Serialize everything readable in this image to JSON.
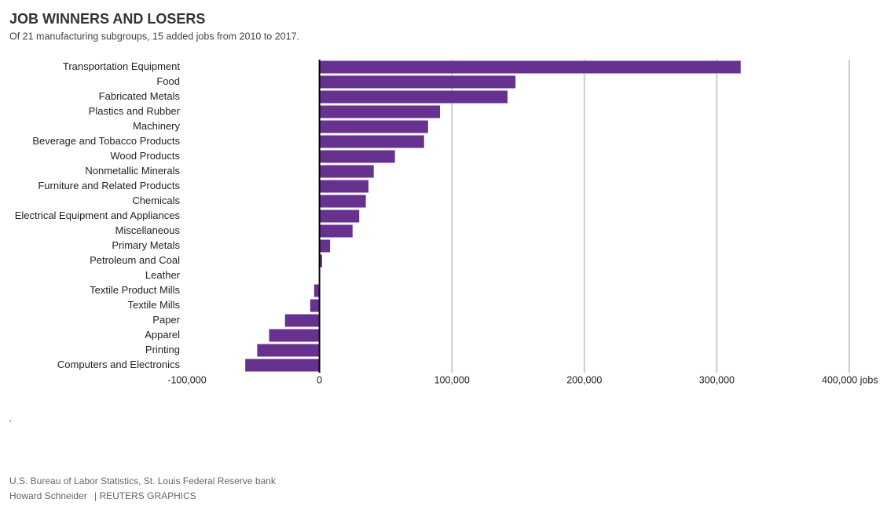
{
  "chart_data": {
    "type": "bar",
    "orientation": "horizontal",
    "title": "JOB WINNERS AND LOSERS",
    "subtitle": "Of 21 manufacturing subgroups, 15 added jobs from 2010 to 2017.",
    "categories": [
      "Transportation Equipment",
      "Food",
      "Fabricated Metals",
      "Plastics and Rubber",
      "Machinery",
      "Beverage and Tobacco Products",
      "Wood Products",
      "Nonmetallic Minerals",
      "Furniture and Related Products",
      "Chemicals",
      "Electrical Equipment and Appliances",
      "Miscellaneous",
      "Primary Metals",
      "Petroleum and Coal",
      "Leather",
      "Textile Product Mills",
      "Textile Mills",
      "Paper",
      "Apparel",
      "Printing",
      "Computers and Electronics"
    ],
    "values": [
      318000,
      148000,
      142000,
      91000,
      82000,
      79000,
      57000,
      41000,
      37000,
      35000,
      30000,
      25000,
      8000,
      2000,
      0,
      -4000,
      -7000,
      -26000,
      -38000,
      -47000,
      -56000
    ],
    "color": "#67318f",
    "xlim": [
      -100000,
      400000
    ],
    "xticks": [
      {
        "value": -100000,
        "label": "-100,000"
      },
      0,
      {
        "value": 100000,
        "label": "100,000"
      },
      {
        "value": 200000,
        "label": "200,000"
      },
      {
        "value": 300000,
        "label": "300,000"
      },
      {
        "value": 400000,
        "label": "400,000 jobs"
      }
    ],
    "grid": true,
    "footnote_mark": "'",
    "source": "U.S. Bureau of Labor Statistics, St. Louis Federal Reserve bank",
    "author": "Howard Schneider",
    "credit": "| REUTERS GRAPHICS"
  }
}
